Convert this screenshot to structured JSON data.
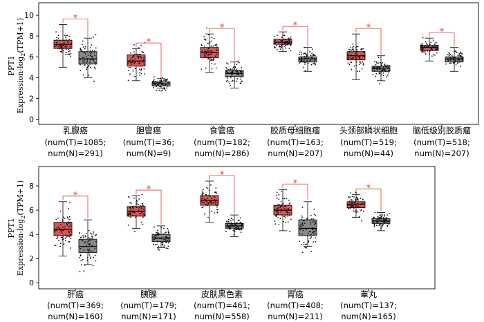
{
  "colors": {
    "tumor": "#d95555",
    "normal": "#8a8a8a",
    "signif": "#e23b3b",
    "jitter": "#111111"
  },
  "chart_data": [
    {
      "type": "box",
      "ylabel": {
        "gene": "PPT1",
        "text": "Expression-log",
        "subscript": "2",
        "suffix": "(TPM+1)"
      },
      "ylim": [
        -0.5,
        11.2
      ],
      "yticks": [
        0,
        2,
        4,
        6,
        8,
        10
      ],
      "groups": [
        {
          "name": "乳腺癌",
          "num_t": "(num(T)=1085;",
          "num_n": "num(N)=291)",
          "marker": "*",
          "tumor": {
            "min": 5.0,
            "q1": 6.8,
            "median": 7.2,
            "q3": 7.6,
            "max": 9.1
          },
          "normal": {
            "min": 4.0,
            "q1": 5.3,
            "median": 5.8,
            "q3": 6.5,
            "max": 7.8
          }
        },
        {
          "name": "胆管癌",
          "num_t": "(num(T)=36;",
          "num_n": "num(N)=9)",
          "marker": "*",
          "tumor": {
            "min": 3.7,
            "q1": 5.1,
            "median": 5.6,
            "q3": 6.2,
            "max": 6.8
          },
          "normal": {
            "min": 3.0,
            "q1": 3.2,
            "median": 3.4,
            "q3": 3.6,
            "max": 3.9
          }
        },
        {
          "name": "食管癌",
          "num_t": "(num(T)=182;",
          "num_n": "num(N)=286)",
          "marker": "*",
          "tumor": {
            "min": 4.5,
            "q1": 5.9,
            "median": 6.4,
            "q3": 6.9,
            "max": 8.2
          },
          "normal": {
            "min": 3.0,
            "q1": 4.1,
            "median": 4.4,
            "q3": 4.7,
            "max": 5.5
          }
        },
        {
          "name": "胶质母细胞瘤",
          "num_t": "(num(T)=163;",
          "num_n": "num(N)=207)",
          "marker": "*",
          "tumor": {
            "min": 6.5,
            "q1": 7.2,
            "median": 7.4,
            "q3": 7.7,
            "max": 8.4
          },
          "normal": {
            "min": 4.6,
            "q1": 5.5,
            "median": 5.8,
            "q3": 6.0,
            "max": 6.9
          }
        },
        {
          "name": "头颈部鳞状细胞",
          "num_t": "(num(T)=519;",
          "num_n": "num(N)=44)",
          "marker": "*",
          "tumor": {
            "min": 3.8,
            "q1": 5.7,
            "median": 6.1,
            "q3": 6.5,
            "max": 8.2
          },
          "normal": {
            "min": 3.7,
            "q1": 4.6,
            "median": 4.9,
            "q3": 5.1,
            "max": 6.1
          }
        },
        {
          "name": "脑低级别胶质瘤",
          "num_t": "(num(T)=518;",
          "num_n": "num(N)=207)",
          "marker": "*",
          "tumor": {
            "min": 5.6,
            "q1": 6.6,
            "median": 6.9,
            "q3": 7.1,
            "max": 7.8
          },
          "normal": {
            "min": 4.6,
            "q1": 5.5,
            "median": 5.8,
            "q3": 6.0,
            "max": 6.9
          }
        }
      ]
    },
    {
      "type": "box",
      "ylabel": {
        "gene": "PPT1",
        "text": "Expression-log",
        "subscript": "2",
        "suffix": "(TPM+1)"
      },
      "ylim": [
        -0.5,
        9.6
      ],
      "yticks": [
        0,
        2,
        4,
        6,
        8
      ],
      "groups": [
        {
          "name": "肝癌",
          "num_t": "(num(T)=369;",
          "num_n": "num(N)=160)",
          "marker": "*",
          "tumor": {
            "min": 2.2,
            "q1": 3.9,
            "median": 4.4,
            "q3": 5.0,
            "max": 6.7
          },
          "normal": {
            "min": 1.5,
            "q1": 2.5,
            "median": 3.0,
            "q3": 3.6,
            "max": 5.2
          }
        },
        {
          "name": "胰腺",
          "num_t": "(num(T)=179;",
          "num_n": "num(N)=171)",
          "marker": "*",
          "tumor": {
            "min": 4.5,
            "q1": 5.5,
            "median": 5.9,
            "q3": 6.3,
            "max": 7.2
          },
          "normal": {
            "min": 2.9,
            "q1": 3.4,
            "median": 3.7,
            "q3": 4.0,
            "max": 4.7
          }
        },
        {
          "name": "皮肤黑色素",
          "num_t": "(num(T)=461;",
          "num_n": "num(N)=558)",
          "marker": "*",
          "tumor": {
            "min": 5.0,
            "q1": 6.4,
            "median": 6.8,
            "q3": 7.2,
            "max": 8.4
          },
          "normal": {
            "min": 3.8,
            "q1": 4.5,
            "median": 4.7,
            "q3": 4.9,
            "max": 5.6
          }
        },
        {
          "name": "胃癌",
          "num_t": "(num(T)=408;",
          "num_n": "num(N)=211)",
          "marker": "*",
          "tumor": {
            "min": 4.3,
            "q1": 5.6,
            "median": 6.0,
            "q3": 6.4,
            "max": 7.7
          },
          "normal": {
            "min": 3.0,
            "q1": 3.9,
            "median": 4.5,
            "q3": 5.2,
            "max": 6.7
          }
        },
        {
          "name": "睾丸",
          "num_t": "(num(T)=137;",
          "num_n": "num(N)=165)",
          "marker": "*",
          "tumor": {
            "min": 5.4,
            "q1": 6.2,
            "median": 6.5,
            "q3": 6.7,
            "max": 7.3
          },
          "normal": {
            "min": 4.3,
            "q1": 4.9,
            "median": 5.1,
            "q3": 5.3,
            "max": 5.8
          }
        }
      ]
    }
  ]
}
